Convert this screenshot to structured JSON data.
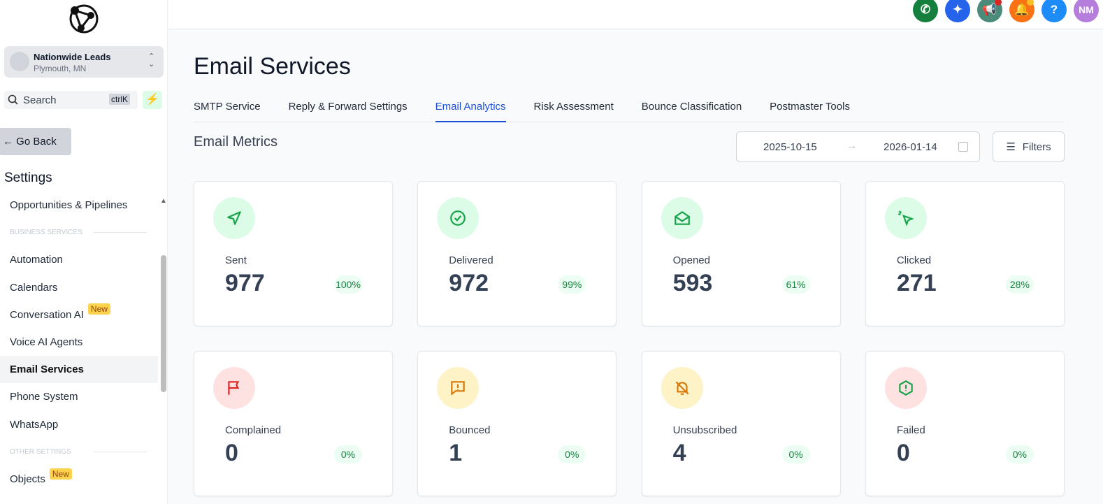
{
  "sidebar": {
    "account_name": "Nationwide Leads",
    "account_location": "Plymouth, MN",
    "search": "Search",
    "shortcut": "ctrlK",
    "back": "Go Back",
    "heading": "Settings",
    "items": [
      {
        "label": "Opportunities & Pipelines"
      },
      {
        "section": "BUSINESS SERVICES"
      },
      {
        "label": "Automation"
      },
      {
        "label": "Calendars"
      },
      {
        "label": "Conversation AI",
        "badge": "New"
      },
      {
        "label": "Voice AI Agents"
      },
      {
        "label": "Email Services",
        "active": true
      },
      {
        "label": "Phone System"
      },
      {
        "label": "WhatsApp"
      },
      {
        "section": "OTHER SETTINGS"
      },
      {
        "label": "Objects",
        "badge": "New"
      }
    ]
  },
  "header": {
    "help": "?",
    "avatar": "NM"
  },
  "main": {
    "title": "Email Services",
    "tabs": [
      "SMTP Service",
      "Reply & Forward Settings",
      "Email Analytics",
      "Risk Assessment",
      "Bounce Classification",
      "Postmaster Tools"
    ],
    "active_tab": 2,
    "section_title": "Email Metrics",
    "date_start": "2025-10-15",
    "date_end": "2026-01-14",
    "filters": "Filters",
    "metrics": [
      {
        "label": "Sent",
        "value": 977,
        "percent": "100%"
      },
      {
        "label": "Delivered",
        "value": 972,
        "percent": "99%"
      },
      {
        "label": "Opened",
        "value": 593,
        "percent": "61%"
      },
      {
        "label": "Clicked",
        "value": 271,
        "percent": "28%"
      },
      {
        "label": "Complained",
        "value": 0,
        "percent": "0%"
      },
      {
        "label": "Bounced",
        "value": 1,
        "percent": "0%"
      },
      {
        "label": "Unsubscribed",
        "value": 4,
        "percent": "0%"
      },
      {
        "label": "Failed",
        "value": 0,
        "percent": "0%"
      }
    ]
  }
}
